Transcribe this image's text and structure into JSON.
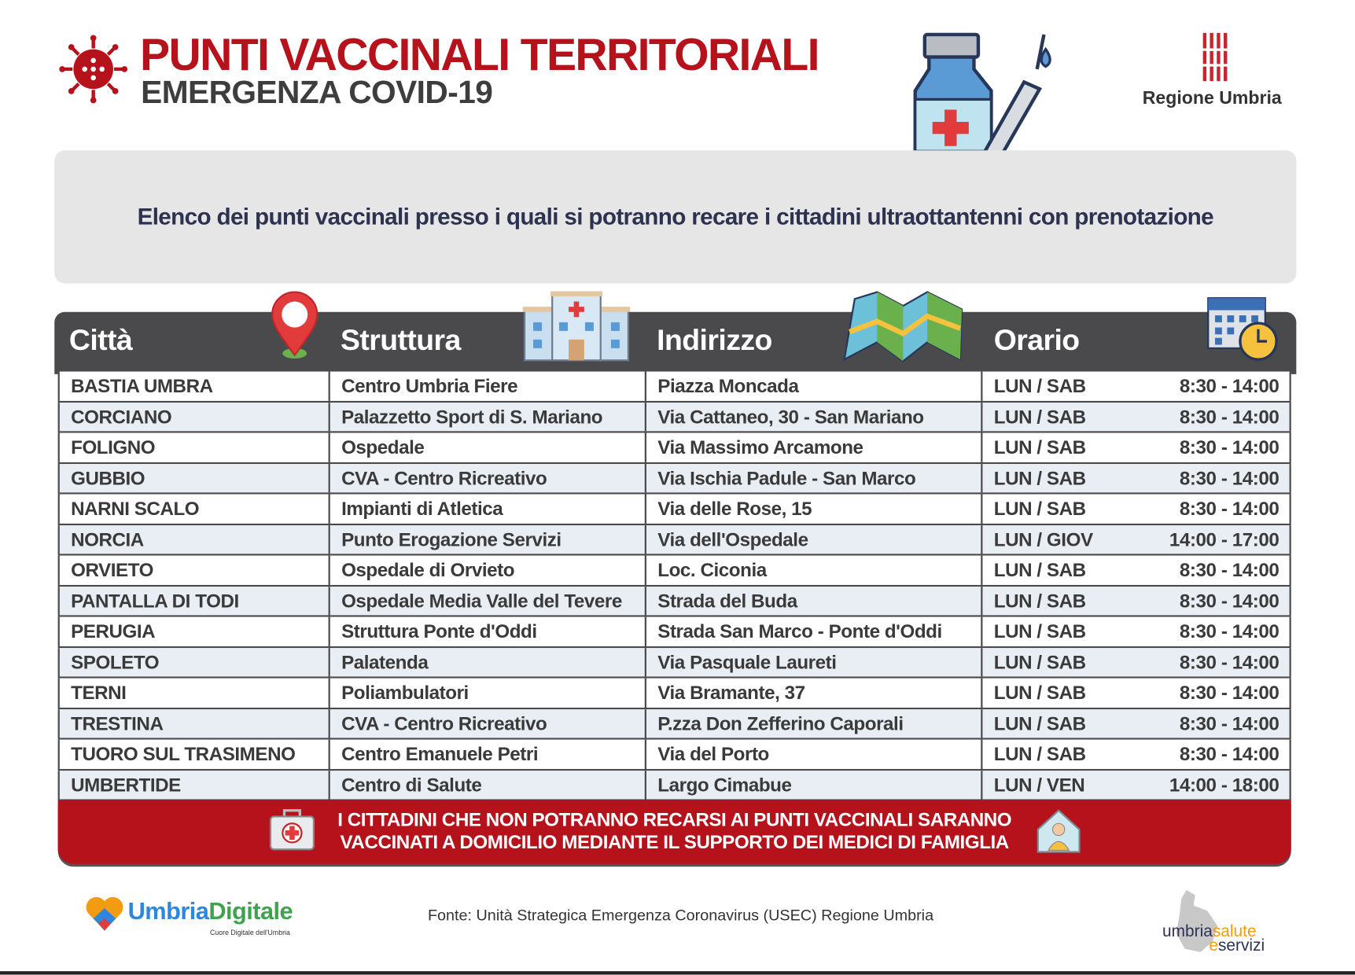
{
  "header": {
    "title": "PUNTI VACCINALI TERRITORIALI",
    "subtitle": "EMERGENZA COVID-19",
    "region_logo_text": "Regione Umbria"
  },
  "intro": "Elenco dei punti vaccinali presso i quali si potranno recare i cittadini ultraottantenni con prenotazione",
  "table": {
    "columns": [
      "Città",
      "Struttura",
      "Indirizzo",
      "Orario"
    ],
    "rows": [
      {
        "citta": "BASTIA UMBRA",
        "struttura": "Centro Umbria Fiere",
        "indirizzo": "Piazza Moncada",
        "giorni": "LUN / SAB",
        "ore": "8:30 - 14:00"
      },
      {
        "citta": "CORCIANO",
        "struttura": "Palazzetto Sport di  S. Mariano",
        "indirizzo": "Via Cattaneo, 30 - San Mariano",
        "giorni": "LUN / SAB",
        "ore": "8:30 - 14:00"
      },
      {
        "citta": "FOLIGNO",
        "struttura": "Ospedale",
        "indirizzo": "Via Massimo Arcamone",
        "giorni": "LUN / SAB",
        "ore": "8:30 - 14:00"
      },
      {
        "citta": "GUBBIO",
        "struttura": "CVA - Centro Ricreativo",
        "indirizzo": "Via Ischia Padule - San Marco",
        "giorni": "LUN / SAB",
        "ore": "8:30 - 14:00"
      },
      {
        "citta": "NARNI SCALO",
        "struttura": "Impianti di Atletica",
        "indirizzo": "Via delle Rose, 15",
        "giorni": "LUN / SAB",
        "ore": "8:30 - 14:00"
      },
      {
        "citta": "NORCIA",
        "struttura": "Punto Erogazione Servizi",
        "indirizzo": "Via dell'Ospedale",
        "giorni": "LUN / GIOV",
        "ore": "14:00 - 17:00"
      },
      {
        "citta": "ORVIETO",
        "struttura": "Ospedale di Orvieto",
        "indirizzo": "Loc. Ciconia",
        "giorni": "LUN / SAB",
        "ore": "8:30 - 14:00"
      },
      {
        "citta": "PANTALLA DI TODI",
        "struttura": "Ospedale Media Valle del Tevere",
        "indirizzo": "Strada del Buda",
        "giorni": "LUN / SAB",
        "ore": "8:30 - 14:00"
      },
      {
        "citta": "PERUGIA",
        "struttura": "Struttura Ponte d'Oddi",
        "indirizzo": "Strada San Marco - Ponte d'Oddi",
        "giorni": "LUN / SAB",
        "ore": "8:30 - 14:00"
      },
      {
        "citta": "SPOLETO",
        "struttura": "Palatenda",
        "indirizzo": "Via Pasquale Laureti",
        "giorni": "LUN / SAB",
        "ore": "8:30 - 14:00"
      },
      {
        "citta": "TERNI",
        "struttura": "Poliambulatori",
        "indirizzo": "Via Bramante, 37",
        "giorni": "LUN / SAB",
        "ore": "8:30 - 14:00"
      },
      {
        "citta": "TRESTINA",
        "struttura": "CVA - Centro Ricreativo",
        "indirizzo": "P.zza Don Zefferino Caporali",
        "giorni": "LUN / SAB",
        "ore": "8:30 - 14:00"
      },
      {
        "citta": "TUORO SUL TRASIMENO",
        "struttura": "Centro Emanuele Petri",
        "indirizzo": "Via del Porto",
        "giorni": "LUN / SAB",
        "ore": "8:30 - 14:00"
      },
      {
        "citta": "UMBERTIDE",
        "struttura": "Centro di Salute",
        "indirizzo": "Largo Cimabue",
        "giorni": "LUN / VEN",
        "ore": "14:00 - 18:00"
      }
    ]
  },
  "notice": {
    "line1": "I CITTADINI CHE NON POTRANNO RECARSI AI PUNTI VACCINALI SARANNO",
    "line2": "VACCINATI A DOMICILIO MEDIANTE IL SUPPORTO DEI MEDICI DI FAMIGLIA"
  },
  "footer": {
    "source": "Fonte: Unità Strategica Emergenza Coronavirus (USEC) Regione Umbria",
    "logo_left": {
      "part1": "Umbria",
      "part2": "Digitale",
      "tagline": "Cuore Digitale dell'Umbria"
    },
    "logo_right": {
      "part1": "umbria",
      "part2": "salute",
      "part3": "e",
      "part4": "servizi"
    }
  },
  "colors": {
    "accent_red": "#b5121b",
    "header_dark": "#4a4a4c",
    "row_alt": "#e8eef4",
    "intro_bg": "#e6e6e6",
    "intro_text": "#2d3250"
  },
  "icons": [
    "virus-icon",
    "vaccine-vial-syringe-icon",
    "location-pin-icon",
    "hospital-icon",
    "map-icon",
    "calendar-clock-icon",
    "medical-kit-icon",
    "home-doctor-icon"
  ]
}
